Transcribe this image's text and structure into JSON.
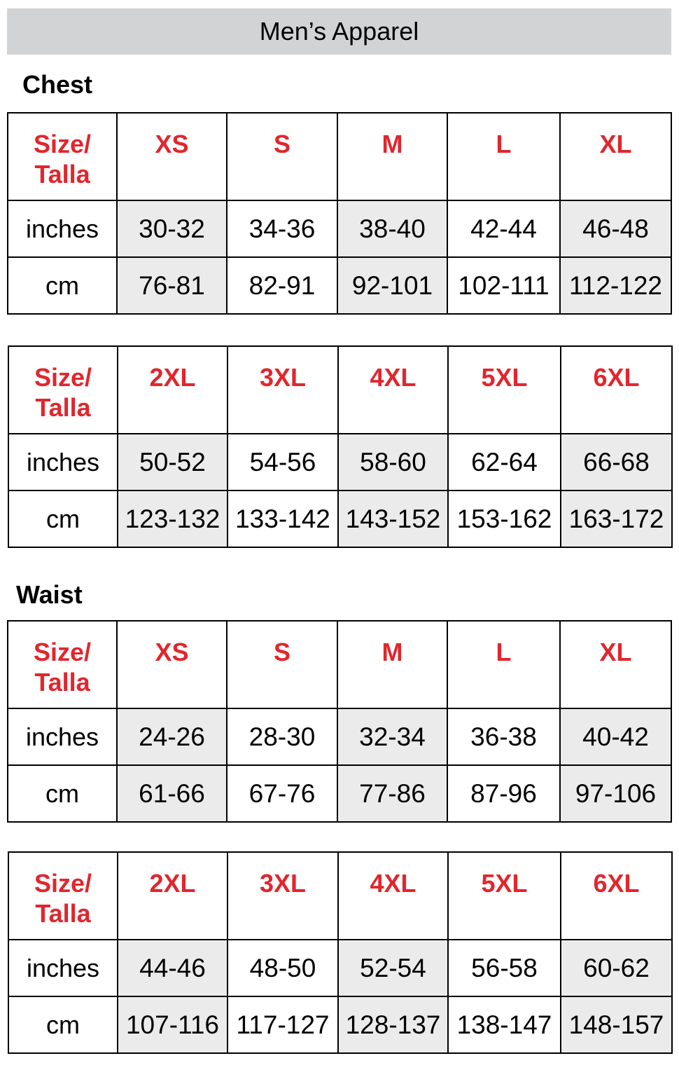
{
  "title": "Men’s Apparel",
  "accent_color": "#e1262d",
  "sections": [
    {
      "heading": "Chest",
      "tables": [
        {
          "size_label": "Size/ Talla",
          "sizes": [
            "XS",
            "S",
            "M",
            "L",
            "XL"
          ],
          "rows": [
            {
              "unit": "inches",
              "values": [
                "30-32",
                "34-36",
                "38-40",
                "42-44",
                "46-48"
              ]
            },
            {
              "unit": "cm",
              "values": [
                "76-81",
                "82-91",
                "92-101",
                "102-111",
                "112-122"
              ]
            }
          ]
        },
        {
          "size_label": "Size/ Talla",
          "sizes": [
            "2XL",
            "3XL",
            "4XL",
            "5XL",
            "6XL"
          ],
          "rows": [
            {
              "unit": "inches",
              "values": [
                "50-52",
                "54-56",
                "58-60",
                "62-64",
                "66-68"
              ]
            },
            {
              "unit": "cm",
              "values": [
                "123-132",
                "133-142",
                "143-152",
                "153-162",
                "163-172"
              ]
            }
          ]
        }
      ]
    },
    {
      "heading": "Waist",
      "tables": [
        {
          "size_label": "Size/ Talla",
          "sizes": [
            "XS",
            "S",
            "M",
            "L",
            "XL"
          ],
          "rows": [
            {
              "unit": "inches",
              "values": [
                "24-26",
                "28-30",
                "32-34",
                "36-38",
                "40-42"
              ]
            },
            {
              "unit": "cm",
              "values": [
                "61-66",
                "67-76",
                "77-86",
                "87-96",
                "97-106"
              ]
            }
          ]
        },
        {
          "size_label": "Size/ Talla",
          "sizes": [
            "2XL",
            "3XL",
            "4XL",
            "5XL",
            "6XL"
          ],
          "rows": [
            {
              "unit": "inches",
              "values": [
                "44-46",
                "48-50",
                "52-54",
                "56-58",
                "60-62"
              ]
            },
            {
              "unit": "cm",
              "values": [
                "107-116",
                "117-127",
                "128-137",
                "138-147",
                "148-157"
              ]
            }
          ]
        }
      ]
    }
  ]
}
